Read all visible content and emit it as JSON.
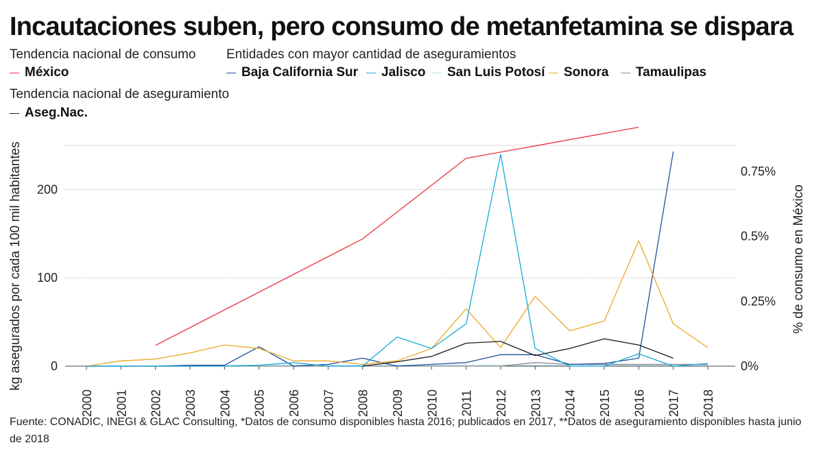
{
  "title": "Incautaciones suben, pero consumo de metanfetamina se dispara",
  "legend": {
    "consumo_header": "Tendencia nacional de consumo",
    "entidades_header": "Entidades con mayor cantidad de aseguramientos",
    "aseg_header": "Tendencia nacional de aseguramiento"
  },
  "source": "Fuente: CONADIC, INEGI & GLAC Consulting, *Datos de consumo disponibles hasta 2016; publicados en 2017, **Datos de aseguramiento disponibles hasta junio de 2018",
  "chart_data": {
    "type": "line",
    "title": "Incautaciones suben, pero consumo de metanfetamina se dispara",
    "xlabel": "",
    "ylabel": "kg asegurados por cada 100 mil habitantes",
    "y2label": "% de consumo en México",
    "x": [
      "2000",
      "2001",
      "2002",
      "2003",
      "2004",
      "2005",
      "2006",
      "2007",
      "2008",
      "2009",
      "2010",
      "2011",
      "2012",
      "2013",
      "2014",
      "2015",
      "2016",
      "2017",
      "2018"
    ],
    "ylim": [
      0,
      250
    ],
    "yticks": [
      0,
      100,
      200
    ],
    "y2lim": [
      0,
      0.85
    ],
    "y2ticks": [
      {
        "value": 0,
        "label": "0%"
      },
      {
        "value": 0.25,
        "label": "0.25%"
      },
      {
        "value": 0.5,
        "label": "0.5%"
      },
      {
        "value": 0.75,
        "label": "0.75%"
      }
    ],
    "series": [
      {
        "name": "Baja California Sur",
        "color": "#1f4e9c",
        "axis": "left",
        "values": [
          0,
          0,
          0,
          1,
          1,
          22,
          0,
          2,
          9,
          0,
          2,
          4,
          13,
          13,
          2,
          3,
          9,
          243,
          null
        ]
      },
      {
        "name": "Jalisco",
        "color": "#18a9d8",
        "axis": "left",
        "values": [
          0,
          0,
          0,
          0,
          0,
          1,
          4,
          0,
          0,
          33,
          20,
          48,
          240,
          20,
          0,
          0,
          14,
          0,
          3
        ]
      },
      {
        "name": "San Luis Potosí",
        "color": "#b8e4f3",
        "axis": "left",
        "values": [
          0,
          0,
          0,
          0,
          1,
          1,
          1,
          1,
          1,
          1,
          1,
          1,
          1,
          1,
          1,
          1,
          1,
          1,
          1
        ]
      },
      {
        "name": "Sonora",
        "color": "#eba825",
        "axis": "left",
        "values": [
          0,
          6,
          8,
          15,
          24,
          20,
          6,
          6,
          2,
          6,
          20,
          65,
          21,
          79,
          40,
          51,
          142,
          48,
          21
        ]
      },
      {
        "name": "Tamaulipas",
        "color": "#8c8c8c",
        "axis": "left",
        "values": [
          0,
          0,
          0,
          0,
          0,
          0,
          0,
          0,
          0,
          0,
          0,
          0,
          0,
          4,
          2,
          2,
          2,
          2,
          2
        ]
      },
      {
        "name": "Aseg.Nac.",
        "color": "#1a1a1a",
        "axis": "left",
        "values": [
          null,
          null,
          null,
          null,
          null,
          null,
          null,
          null,
          0,
          5,
          11,
          26,
          28,
          12,
          20,
          31,
          24,
          9,
          null
        ]
      },
      {
        "name": "México",
        "color": "#e8323a",
        "axis": "right",
        "values": [
          null,
          null,
          0.08,
          null,
          null,
          null,
          null,
          null,
          0.49,
          null,
          null,
          0.8,
          null,
          null,
          null,
          null,
          0.92,
          null,
          null
        ]
      }
    ]
  }
}
